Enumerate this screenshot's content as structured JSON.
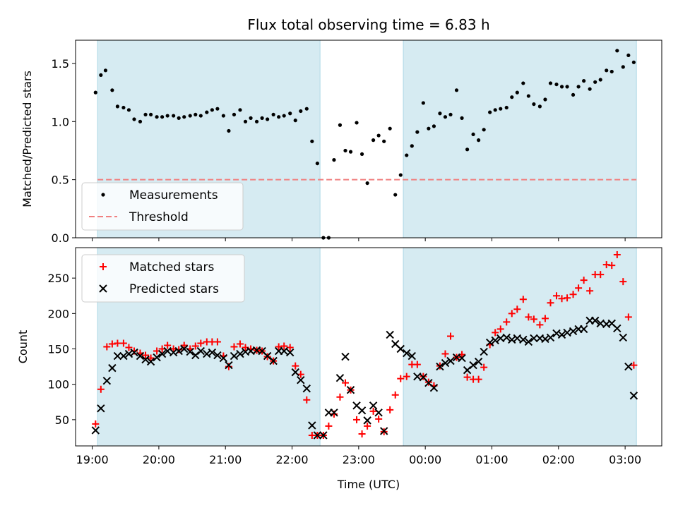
{
  "chart_data": {
    "title": "Flux total observing time = 6.83 h",
    "xlabel": "Time (UTC)",
    "x_ticks": [
      "19:00",
      "20:00",
      "21:00",
      "22:00",
      "23:00",
      "00:00",
      "01:00",
      "02:00",
      "03:00"
    ],
    "x_tick_hours": [
      19,
      20,
      21,
      22,
      23,
      24,
      25,
      26,
      27
    ],
    "xlim": [
      18.75,
      27.55
    ],
    "shaded_intervals": [
      [
        19.08,
        22.42
      ],
      [
        23.67,
        27.17
      ]
    ],
    "shade_color": "#add8e6",
    "panels": [
      {
        "type": "scatter",
        "ylabel": "Matched/Predicted stars",
        "ylim": [
          0,
          1.7
        ],
        "y_ticks": [
          0.0,
          0.5,
          1.0,
          1.5
        ],
        "threshold": 0.5,
        "threshold_color": "#f08080",
        "legend": {
          "position": "lower-left",
          "entries": [
            "Measurements",
            "Threshold"
          ]
        },
        "series": [
          {
            "name": "Measurements",
            "color": "#000000",
            "x": [
              19.05,
              19.13,
              19.2,
              19.3,
              19.38,
              19.47,
              19.55,
              19.63,
              19.72,
              19.8,
              19.88,
              19.97,
              20.05,
              20.13,
              20.22,
              20.3,
              20.38,
              20.47,
              20.55,
              20.63,
              20.72,
              20.8,
              20.88,
              20.97,
              21.05,
              21.13,
              21.22,
              21.3,
              21.38,
              21.47,
              21.55,
              21.63,
              21.72,
              21.8,
              21.88,
              21.97,
              22.05,
              22.13,
              22.22,
              22.3,
              22.38,
              22.47,
              22.55,
              22.63,
              22.72,
              22.8,
              22.88,
              22.97,
              23.05,
              23.13,
              23.22,
              23.3,
              23.38,
              23.47,
              23.55,
              23.63,
              23.72,
              23.8,
              23.88,
              23.97,
              24.05,
              24.13,
              24.22,
              24.3,
              24.38,
              24.47,
              24.55,
              24.63,
              24.72,
              24.8,
              24.88,
              24.97,
              25.05,
              25.13,
              25.22,
              25.3,
              25.38,
              25.47,
              25.55,
              25.63,
              25.72,
              25.8,
              25.88,
              25.97,
              26.05,
              26.13,
              26.22,
              26.3,
              26.38,
              26.47,
              26.55,
              26.63,
              26.72,
              26.8,
              26.88,
              26.97,
              27.05,
              27.13
            ],
            "y": [
              1.25,
              1.4,
              1.44,
              1.27,
              1.13,
              1.12,
              1.1,
              1.02,
              1.0,
              1.06,
              1.06,
              1.04,
              1.04,
              1.05,
              1.05,
              1.03,
              1.04,
              1.05,
              1.06,
              1.05,
              1.08,
              1.1,
              1.11,
              1.05,
              0.92,
              1.06,
              1.1,
              1.0,
              1.03,
              1.0,
              1.03,
              1.02,
              1.06,
              1.04,
              1.05,
              1.07,
              1.01,
              1.09,
              1.11,
              0.83,
              0.64,
              0.0,
              0.0,
              0.67,
              0.97,
              0.75,
              0.74,
              0.99,
              0.72,
              0.47,
              0.84,
              0.88,
              0.83,
              0.94,
              0.37,
              0.54,
              0.71,
              0.79,
              0.91,
              1.16,
              0.94,
              0.96,
              1.07,
              1.04,
              1.06,
              1.27,
              1.03,
              0.76,
              0.89,
              0.84,
              0.93,
              1.08,
              1.1,
              1.11,
              1.12,
              1.21,
              1.25,
              1.33,
              1.22,
              1.15,
              1.13,
              1.19,
              1.33,
              1.32,
              1.3,
              1.3,
              1.23,
              1.3,
              1.35,
              1.28,
              1.34,
              1.36,
              1.44,
              1.43,
              1.61,
              1.47,
              1.57,
              1.51
            ]
          }
        ]
      },
      {
        "type": "scatter",
        "ylabel": "Count",
        "ylim": [
          13,
          293
        ],
        "y_ticks": [
          50,
          100,
          150,
          200,
          250
        ],
        "legend": {
          "position": "upper-left",
          "entries": [
            "Matched stars",
            "Predicted stars"
          ]
        },
        "series": [
          {
            "name": "Matched stars",
            "marker": "plus",
            "color": "#ff0000",
            "x": [
              19.05,
              19.13,
              19.22,
              19.3,
              19.38,
              19.47,
              19.55,
              19.63,
              19.72,
              19.8,
              19.88,
              19.97,
              20.05,
              20.13,
              20.22,
              20.3,
              20.38,
              20.47,
              20.55,
              20.63,
              20.72,
              20.8,
              20.88,
              20.97,
              21.05,
              21.13,
              21.22,
              21.3,
              21.38,
              21.47,
              21.55,
              21.63,
              21.72,
              21.8,
              21.88,
              21.97,
              22.05,
              22.13,
              22.22,
              22.3,
              22.38,
              22.47,
              22.55,
              22.63,
              22.72,
              22.8,
              22.88,
              22.97,
              23.05,
              23.13,
              23.22,
              23.3,
              23.38,
              23.47,
              23.55,
              23.63,
              23.72,
              23.8,
              23.88,
              23.97,
              24.05,
              24.13,
              24.22,
              24.3,
              24.38,
              24.47,
              24.55,
              24.63,
              24.72,
              24.8,
              24.88,
              24.97,
              25.05,
              25.13,
              25.22,
              25.3,
              25.38,
              25.47,
              25.55,
              25.63,
              25.72,
              25.8,
              25.88,
              25.97,
              26.05,
              26.13,
              26.22,
              26.3,
              26.38,
              26.47,
              26.55,
              26.63,
              26.72,
              26.8,
              26.88,
              26.97,
              27.05,
              27.13
            ],
            "y": [
              44,
              93,
              153,
              157,
              158,
              158,
              152,
              147,
              144,
              141,
              137,
              147,
              150,
              155,
              150,
              149,
              155,
              150,
              154,
              158,
              160,
              160,
              160,
              140,
              125,
              153,
              157,
              152,
              150,
              148,
              147,
              139,
              133,
              153,
              154,
              152,
              126,
              114,
              78,
              28,
              28,
              28,
              41,
              58,
              82,
              102,
              92,
              50,
              30,
              41,
              62,
              51,
              33,
              64,
              85,
              108,
              111,
              128,
              128,
              111,
              103,
              98,
              126,
              143,
              168,
              138,
              142,
              110,
              107,
              107,
              124,
              156,
              173,
              178,
              188,
              200,
              206,
              220,
              195,
              192,
              184,
              193,
              215,
              225,
              221,
              222,
              227,
              236,
              247,
              232,
              255,
              255,
              269,
              268,
              283,
              245,
              195,
              127
            ]
          },
          {
            "name": "Predicted stars",
            "marker": "x",
            "color": "#000000",
            "x": [
              19.05,
              19.13,
              19.22,
              19.3,
              19.38,
              19.47,
              19.55,
              19.63,
              19.72,
              19.8,
              19.88,
              19.97,
              20.05,
              20.13,
              20.22,
              20.3,
              20.38,
              20.47,
              20.55,
              20.63,
              20.72,
              20.8,
              20.88,
              20.97,
              21.05,
              21.13,
              21.22,
              21.3,
              21.38,
              21.47,
              21.55,
              21.63,
              21.72,
              21.8,
              21.88,
              21.97,
              22.05,
              22.13,
              22.22,
              22.3,
              22.38,
              22.47,
              22.55,
              22.63,
              22.72,
              22.8,
              22.88,
              22.97,
              23.05,
              23.13,
              23.22,
              23.3,
              23.38,
              23.47,
              23.55,
              23.63,
              23.72,
              23.8,
              23.88,
              23.97,
              24.05,
              24.13,
              24.22,
              24.3,
              24.38,
              24.47,
              24.55,
              24.63,
              24.72,
              24.8,
              24.88,
              24.97,
              25.05,
              25.13,
              25.22,
              25.3,
              25.38,
              25.47,
              25.55,
              25.63,
              25.72,
              25.8,
              25.88,
              25.97,
              26.05,
              26.13,
              26.22,
              26.3,
              26.38,
              26.47,
              26.55,
              26.63,
              26.72,
              26.8,
              26.88,
              26.97,
              27.05,
              27.13
            ],
            "y": [
              35,
              66,
              105,
              123,
              140,
              140,
              143,
              145,
              140,
              135,
              132,
              138,
              143,
              147,
              145,
              147,
              150,
              146,
              141,
              147,
              143,
              145,
              141,
              137,
              127,
              140,
              143,
              146,
              147,
              148,
              147,
              140,
              133,
              147,
              147,
              145,
              117,
              106,
              94,
              42,
              28,
              28,
              60,
              60,
              109,
              139,
              92,
              70,
              63,
              49,
              70,
              60,
              34,
              170,
              157,
              150,
              144,
              140,
              111,
              110,
              102,
              95,
              125,
              130,
              133,
              138,
              137,
              120,
              127,
              132,
              146,
              159,
              162,
              165,
              166,
              163,
              165,
              163,
              160,
              165,
              165,
              164,
              166,
              172,
              170,
              173,
              175,
              178,
              178,
              190,
              190,
              186,
              185,
              186,
              179,
              166,
              125,
              84
            ]
          }
        ]
      }
    ]
  }
}
